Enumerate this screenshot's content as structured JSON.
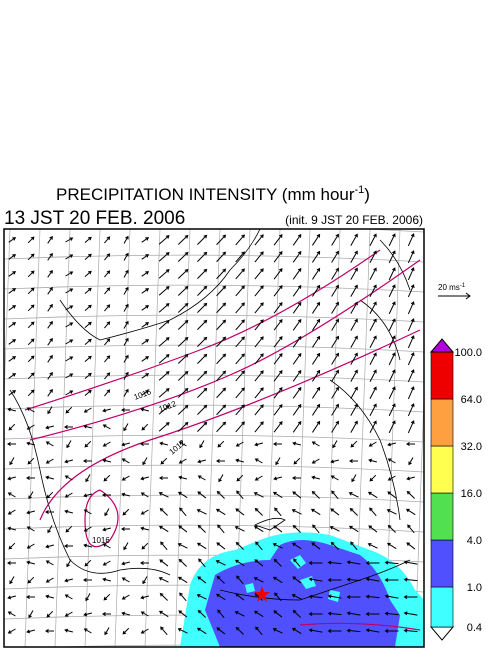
{
  "header": {
    "title": {
      "text": "PRECIPITATION INTENSITY (mm hour",
      "superscript": "-1",
      "suffix": ")"
    },
    "valid_time": "13 JST 20 FEB. 2006",
    "init_time": "(init. 9 JST 20 FEB. 2006)"
  },
  "wind_scale": {
    "text": "20 ms",
    "superscript": "-1"
  },
  "contour_labels": [
    "1016",
    "1012",
    "1012",
    "1016"
  ],
  "colorbar": {
    "labels": [
      "0.4",
      "1.0",
      "4.0",
      "16.0",
      "32.0",
      "64.0",
      "100.0"
    ],
    "colors": [
      "#ffffff",
      "#40ffff",
      "#5050ff",
      "#50e050",
      "#ffff50",
      "#ffa040",
      "#ee0000",
      "#b000e0"
    ]
  }
}
